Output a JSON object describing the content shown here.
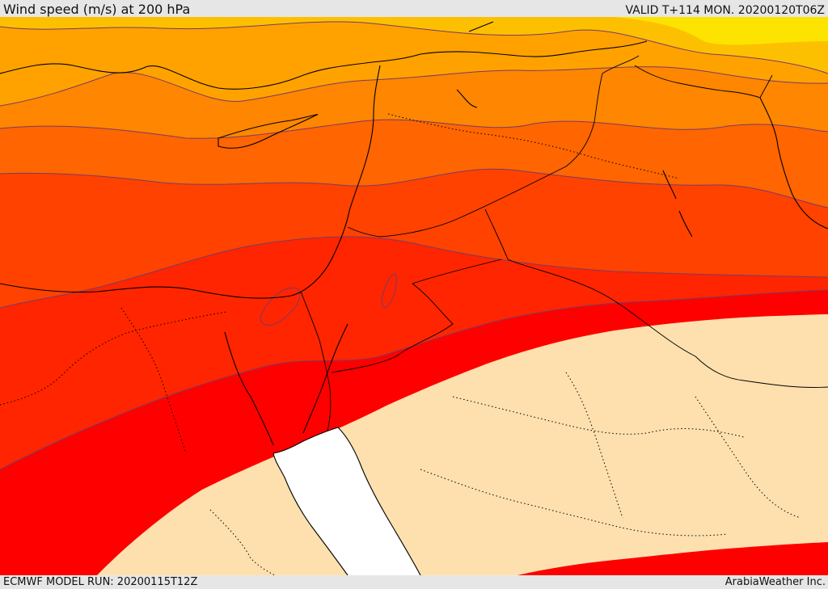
{
  "header": {
    "title": "Wind speed (m/s) at 200 hPa",
    "valid_time": "VALID T+114 MON. 20200120T06Z"
  },
  "footer": {
    "model_run": "ECMWF MODEL RUN: 20200115T12Z",
    "credit": "ArabiaWeather Inc."
  },
  "map": {
    "field": "wind speed 200 hPa",
    "fill_colors": {
      "lightest": "#fde300",
      "light": "#fdc000",
      "band_1": "#ffa200",
      "band_2": "#ff8600",
      "band_3": "#ff6500",
      "band_4": "#ff4200",
      "band_5": "#ff2500",
      "band_6": "#ff0000",
      "calm": "#fde0ae",
      "masked_sea": "#ffffff"
    },
    "boundary_color": "#000000",
    "contour_line_color": "#7a3a66"
  }
}
